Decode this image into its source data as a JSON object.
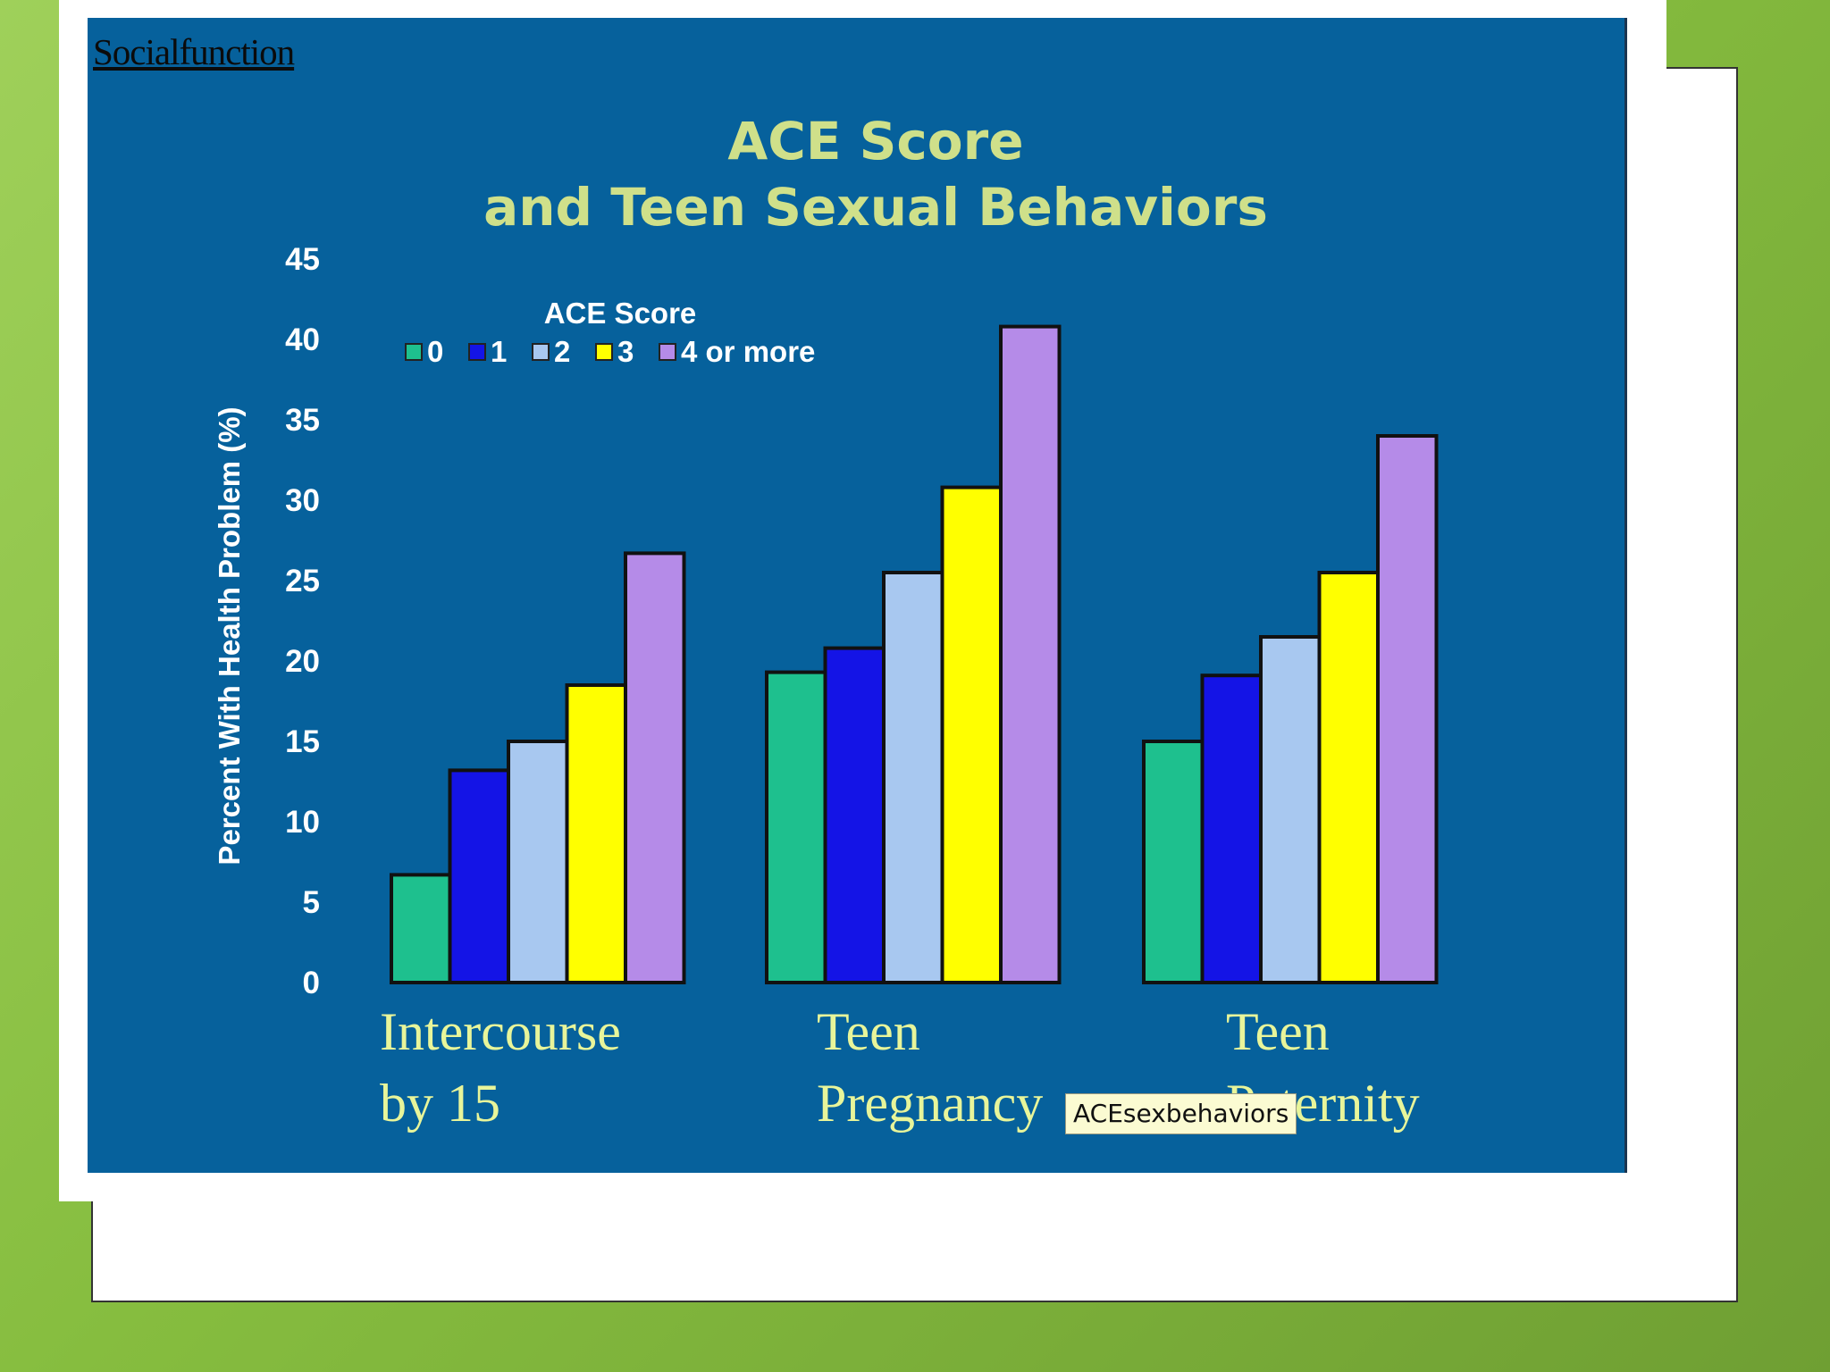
{
  "header_link": "Socialfunction",
  "tooltip": "ACEsexbehaviors",
  "chart_data": {
    "type": "bar",
    "title": [
      "ACE Score",
      "and Teen Sexual Behaviors"
    ],
    "ylabel": "Percent With Health Problem  (%)",
    "ylim": [
      0,
      45
    ],
    "yticks": [
      0,
      5,
      10,
      15,
      20,
      25,
      30,
      35,
      40,
      45
    ],
    "categories": [
      [
        "Intercourse",
        "by 15"
      ],
      [
        "Teen",
        "Pregnancy"
      ],
      [
        "Teen",
        "Paternity"
      ]
    ],
    "legend": {
      "title": "ACE Score",
      "placement": "top-left"
    },
    "series": [
      {
        "name": "0",
        "color": "#1ec08e",
        "values": [
          6.7,
          19.3,
          15.0
        ]
      },
      {
        "name": "1",
        "color": "#1414e6",
        "values": [
          13.2,
          20.8,
          19.1
        ]
      },
      {
        "name": "2",
        "color": "#a8c8f0",
        "values": [
          15.0,
          25.5,
          21.5
        ]
      },
      {
        "name": "3",
        "color": "#ffff00",
        "values": [
          18.5,
          30.8,
          25.5
        ]
      },
      {
        "name": "4 or more",
        "color": "#b58be8",
        "values": [
          26.7,
          40.8,
          34.0
        ]
      }
    ]
  }
}
